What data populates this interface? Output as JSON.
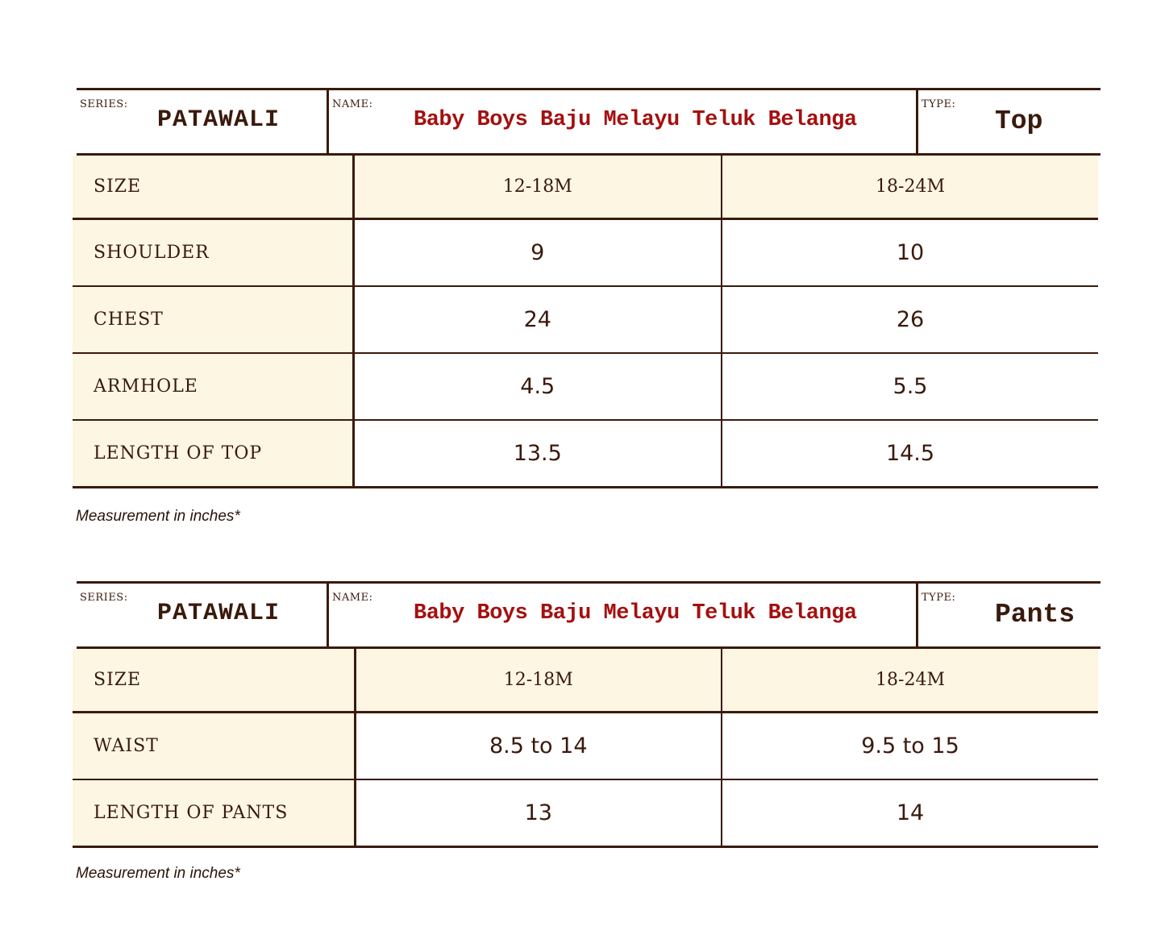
{
  "colors": {
    "ink": "#3a1a0c",
    "cream": "#fdf6e3",
    "name_red": "#a50f0f"
  },
  "tables": [
    {
      "series_label": "SERIES:",
      "series": "PATAWALI",
      "name_label": "NAME:",
      "name": "Baby Boys Baju Melayu Teluk Belanga",
      "type_label": "TYPE:",
      "type": "Top",
      "header": [
        "SIZE",
        "12-18M",
        "18-24M"
      ],
      "rows": [
        [
          "SHOULDER",
          "9",
          "10"
        ],
        [
          "CHEST",
          "24",
          "26"
        ],
        [
          "ARMHOLE",
          "4.5",
          "5.5"
        ],
        [
          "LENGTH OF TOP",
          "13.5",
          "14.5"
        ]
      ],
      "note": "Measurement in inches*"
    },
    {
      "series_label": "SERIES:",
      "series": "PATAWALI",
      "name_label": "NAME:",
      "name": "Baby Boys Baju Melayu Teluk Belanga",
      "type_label": "TYPE:",
      "type": "Pants",
      "header": [
        "SIZE",
        "12-18M",
        "18-24M"
      ],
      "rows": [
        [
          "WAIST",
          "8.5 to 14",
          "9.5 to 15"
        ],
        [
          "LENGTH OF PANTS",
          "13",
          "14"
        ]
      ],
      "note": "Measurement in inches*"
    }
  ]
}
